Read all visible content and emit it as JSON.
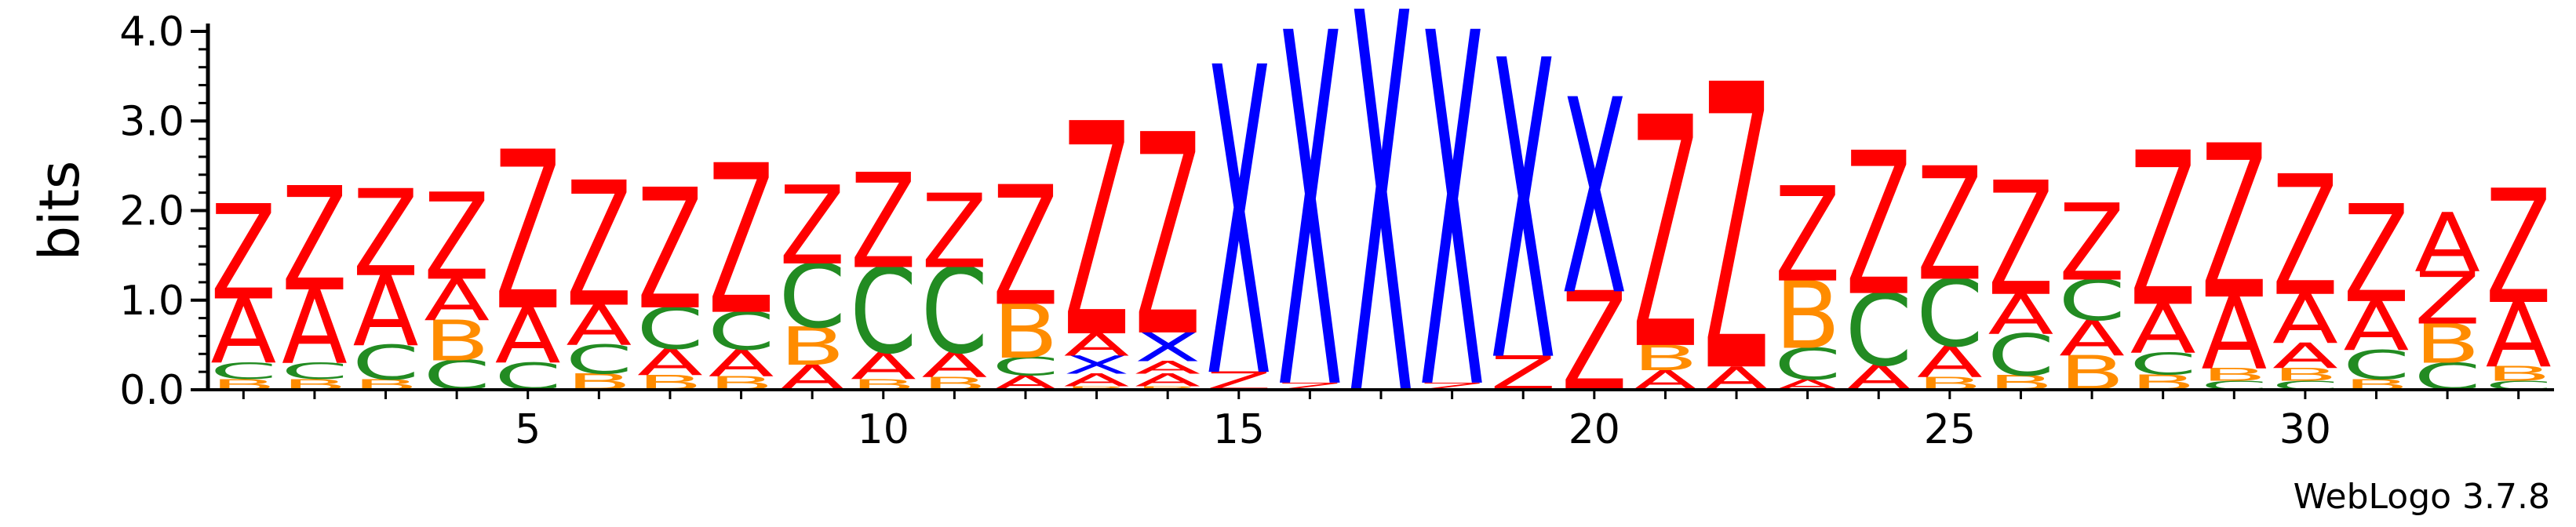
{
  "chart_data": {
    "type": "sequence-logo",
    "ylabel": "bits",
    "xlabel": "",
    "ylim": [
      0,
      4.0
    ],
    "yticks": [
      "0.0",
      "1.0",
      "2.0",
      "3.0",
      "4.0"
    ],
    "xticks": [
      "5",
      "10",
      "15",
      "20",
      "25",
      "30"
    ],
    "xtick_positions": [
      5,
      10,
      15,
      20,
      25,
      30
    ],
    "positions": [
      1,
      33
    ],
    "footer": "WebLogo 3.7.8",
    "colors": {
      "Z": "#ff0000",
      "A": "#ff0000",
      "X": "#0000ff",
      "B": "#ff8c00",
      "C": "#228b22"
    },
    "stacks": [
      [
        [
          "B",
          0.12
        ],
        [
          "C",
          0.18
        ],
        [
          "A",
          0.72
        ],
        [
          "Z",
          1.05
        ]
      ],
      [
        [
          "B",
          0.12
        ],
        [
          "C",
          0.18
        ],
        [
          "A",
          0.82
        ],
        [
          "Z",
          1.15
        ]
      ],
      [
        [
          "B",
          0.12
        ],
        [
          "C",
          0.38
        ],
        [
          "A",
          0.78
        ],
        [
          "Z",
          0.96
        ]
      ],
      [
        [
          "C",
          0.33
        ],
        [
          "B",
          0.45
        ],
        [
          "A",
          0.46
        ],
        [
          "Z",
          0.96
        ]
      ],
      [
        [
          "C",
          0.3
        ],
        [
          "A",
          0.62
        ],
        [
          "Z",
          1.75
        ]
      ],
      [
        [
          "B",
          0.18
        ],
        [
          "C",
          0.32
        ],
        [
          "A",
          0.45
        ],
        [
          "Z",
          1.38
        ]
      ],
      [
        [
          "B",
          0.16
        ],
        [
          "A",
          0.3
        ],
        [
          "C",
          0.46
        ],
        [
          "Z",
          1.33
        ]
      ],
      [
        [
          "B",
          0.15
        ],
        [
          "A",
          0.3
        ],
        [
          "C",
          0.42
        ],
        [
          "Z",
          1.65
        ]
      ],
      [
        [
          "A",
          0.28
        ],
        [
          "B",
          0.42
        ],
        [
          "C",
          0.71
        ],
        [
          "Z",
          0.87
        ]
      ],
      [
        [
          "B",
          0.12
        ],
        [
          "A",
          0.3
        ],
        [
          "C",
          0.95
        ],
        [
          "Z",
          1.05
        ]
      ],
      [
        [
          "B",
          0.14
        ],
        [
          "A",
          0.28
        ],
        [
          "C",
          0.95
        ],
        [
          "Z",
          0.82
        ]
      ],
      [
        [
          "A",
          0.16
        ],
        [
          "C",
          0.2
        ],
        [
          "B",
          0.6
        ],
        [
          "Z",
          1.32
        ]
      ],
      [
        [
          "B",
          0.04
        ],
        [
          "A",
          0.14
        ],
        [
          "X",
          0.2
        ],
        [
          "A",
          0.25
        ],
        [
          "Z",
          2.35
        ]
      ],
      [
        [
          "B",
          0.04
        ],
        [
          "A",
          0.14
        ],
        [
          "A",
          0.14
        ],
        [
          "X",
          0.32
        ],
        [
          "Z",
          2.22
        ]
      ],
      [
        [
          "Z",
          0.2
        ],
        [
          "X",
          3.4
        ]
      ],
      [
        [
          "Z",
          0.08
        ],
        [
          "X",
          3.9
        ]
      ],
      [
        [
          "X",
          4.2
        ]
      ],
      [
        [
          "Z",
          0.08
        ],
        [
          "X",
          3.9
        ]
      ],
      [
        [
          "Z",
          0.38
        ],
        [
          "X",
          3.3
        ]
      ],
      [
        [
          "Z",
          1.1
        ],
        [
          "X",
          2.15
        ]
      ],
      [
        [
          "A",
          0.22
        ],
        [
          "B",
          0.28
        ],
        [
          "Z",
          2.55
        ]
      ],
      [
        [
          "A",
          0.26
        ],
        [
          "Z",
          3.15
        ]
      ],
      [
        [
          "A",
          0.12
        ],
        [
          "C",
          0.35
        ],
        [
          "B",
          0.75
        ],
        [
          "Z",
          1.05
        ]
      ],
      [
        [
          "A",
          0.28
        ],
        [
          "C",
          0.8
        ],
        [
          "Z",
          1.58
        ]
      ],
      [
        [
          "B",
          0.14
        ],
        [
          "A",
          0.35
        ],
        [
          "C",
          0.75
        ],
        [
          "Z",
          1.25
        ]
      ],
      [
        [
          "B",
          0.16
        ],
        [
          "C",
          0.46
        ],
        [
          "A",
          0.45
        ],
        [
          "Z",
          1.26
        ]
      ],
      [
        [
          "B",
          0.38
        ],
        [
          "A",
          0.4
        ],
        [
          "C",
          0.45
        ],
        [
          "Z",
          0.85
        ]
      ],
      [
        [
          "B",
          0.17
        ],
        [
          "C",
          0.24
        ],
        [
          "A",
          0.55
        ],
        [
          "Z",
          1.7
        ]
      ],
      [
        [
          "C",
          0.1
        ],
        [
          "B",
          0.14
        ],
        [
          "A",
          0.8
        ],
        [
          "Z",
          1.7
        ]
      ],
      [
        [
          "C",
          0.1
        ],
        [
          "B",
          0.14
        ],
        [
          "A",
          0.28
        ],
        [
          "A",
          0.55
        ],
        [
          "Z",
          1.33
        ]
      ],
      [
        [
          "B",
          0.12
        ],
        [
          "C",
          0.32
        ],
        [
          "A",
          0.55
        ],
        [
          "Z",
          1.08
        ]
      ],
      [
        [
          "C",
          0.3
        ],
        [
          "B",
          0.44
        ],
        [
          "Z",
          0.58
        ],
        [
          "A",
          0.65
        ]
      ],
      [
        [
          "C",
          0.1
        ],
        [
          "B",
          0.16
        ],
        [
          "A",
          0.72
        ],
        [
          "Z",
          1.26
        ]
      ]
    ]
  }
}
